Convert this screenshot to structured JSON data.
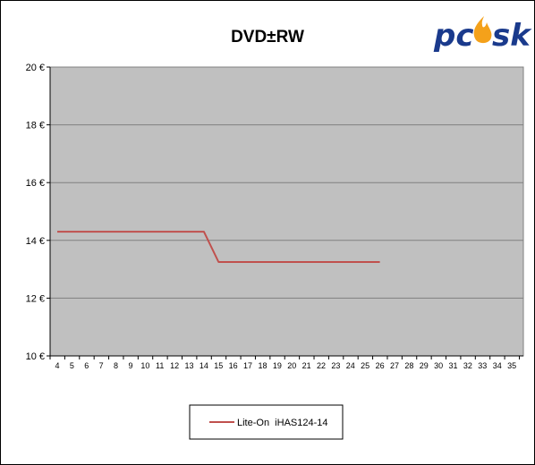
{
  "chart_data": {
    "type": "line",
    "title": "DVD±RW",
    "xlabel": "",
    "ylabel": "",
    "x": [
      4,
      5,
      6,
      7,
      8,
      9,
      10,
      11,
      12,
      13,
      14,
      15,
      16,
      17,
      18,
      19,
      20,
      21,
      22,
      23,
      24,
      25,
      26,
      27,
      28,
      29,
      30,
      31,
      32,
      33,
      34,
      35
    ],
    "ylim": [
      10,
      20
    ],
    "yticks": [
      10,
      12,
      14,
      16,
      18,
      20
    ],
    "ytick_suffix": " €",
    "grid": true,
    "legend_position": "bottom-center",
    "series": [
      {
        "name": "Lite-On  iHAS124-14",
        "color": "#c0504d",
        "points": [
          [
            4,
            14.3
          ],
          [
            5,
            14.3
          ],
          [
            6,
            14.3
          ],
          [
            7,
            14.3
          ],
          [
            8,
            14.3
          ],
          [
            9,
            14.3
          ],
          [
            10,
            14.3
          ],
          [
            11,
            14.3
          ],
          [
            12,
            14.3
          ],
          [
            13,
            14.3
          ],
          [
            14,
            14.3
          ],
          [
            15,
            13.25
          ],
          [
            16,
            13.25
          ],
          [
            17,
            13.25
          ],
          [
            18,
            13.25
          ],
          [
            19,
            13.25
          ],
          [
            20,
            13.25
          ],
          [
            21,
            13.25
          ],
          [
            22,
            13.25
          ],
          [
            23,
            13.25
          ],
          [
            24,
            13.25
          ],
          [
            25,
            13.25
          ],
          [
            26,
            13.25
          ]
        ]
      }
    ]
  },
  "logo": {
    "text_pc": "pc",
    "text_sk": "sk",
    "color_pc": "#1a3a8c",
    "color_flame": "#f4a11a"
  },
  "colors": {
    "plot_bg": "#c0c0c0",
    "grid": "#808080"
  }
}
